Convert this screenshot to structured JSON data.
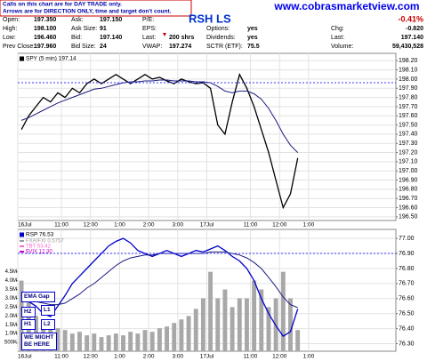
{
  "header": {
    "notice": [
      "Calls on this chart are for DAY TRADE only.",
      "Arrows are for DIRECTION ONLY, time and target don't count."
    ],
    "website": "www.cobrasmarketview.com",
    "symbol": "RSH LS",
    "quote_columns": [
      [
        {
          "label": "Open:",
          "value": "197.350"
        },
        {
          "label": "High:",
          "value": "198.100"
        },
        {
          "label": "Low:",
          "value": "196.460"
        },
        {
          "label": "Prev Close:",
          "value": "197.960"
        }
      ],
      [
        {
          "label": "Ask:",
          "value": "197.150"
        },
        {
          "label": "Ask Size:",
          "value": "91"
        },
        {
          "label": "Bid:",
          "value": "197.140"
        },
        {
          "label": "Bid Size:",
          "value": "24"
        }
      ],
      [
        {
          "label": "P/E:"
        },
        {
          "label": "EPS:"
        },
        {
          "label": "Last:",
          "value": "200 shrs"
        },
        {
          "label": "VWAP:",
          "value": "197.274"
        }
      ],
      [
        null,
        {
          "label": "Options:",
          "value": "yes"
        },
        {
          "label": "Dividends:",
          "value": "yes"
        },
        {
          "label": "SCTR (ETF):",
          "value": "75.5"
        }
      ]
    ],
    "summary": [
      {
        "value": "-0.41%"
      },
      {
        "label": "Chg:",
        "value": "-0.820"
      },
      {
        "label": "Last:",
        "value": "197.140"
      },
      {
        "label": "Volume:",
        "value": "59,430,528"
      }
    ]
  },
  "chart_data": [
    {
      "type": "line",
      "categories": [
        "16Jul",
        null,
        null,
        null,
        null,
        null,
        "11:00",
        null,
        null,
        null,
        "12:00",
        null,
        null,
        null,
        "1:00",
        null,
        null,
        null,
        "2:00",
        null,
        null,
        null,
        "3:00",
        null,
        null,
        null,
        "17Jul",
        null,
        null,
        null,
        null,
        null,
        "11:00",
        null,
        null,
        null,
        "12:00",
        null,
        null,
        null,
        "1:00",
        null,
        null,
        null,
        null,
        null,
        null,
        null,
        null,
        null,
        null,
        null
      ],
      "series": [
        {
          "name": "SPY (5 min) 197.14",
          "color": "#000000",
          "values": [
            197.45,
            197.6,
            197.7,
            197.8,
            197.75,
            197.85,
            197.8,
            197.9,
            197.85,
            197.95,
            198.0,
            197.95,
            198.0,
            198.05,
            198.0,
            197.95,
            198.0,
            198.05,
            198.0,
            198.02,
            197.98,
            197.95,
            198.0,
            197.97,
            197.95,
            197.96,
            197.9,
            197.5,
            197.4,
            197.75,
            198.05,
            197.9,
            197.7,
            197.45,
            197.2,
            196.9,
            196.6,
            196.75,
            197.14,
            null,
            null,
            null,
            null,
            null,
            null,
            null,
            null,
            null,
            null,
            null,
            null,
            null
          ]
        },
        {
          "color": "#1a1a80",
          "values": [
            197.55,
            197.58,
            197.62,
            197.66,
            197.7,
            197.74,
            197.77,
            197.8,
            197.83,
            197.86,
            197.89,
            197.9,
            197.92,
            197.94,
            197.96,
            197.97,
            197.97,
            197.98,
            197.98,
            197.99,
            197.99,
            197.98,
            197.98,
            197.98,
            197.97,
            197.97,
            197.96,
            197.92,
            197.87,
            197.85,
            197.87,
            197.87,
            197.84,
            197.78,
            197.68,
            197.55,
            197.4,
            197.28,
            197.2,
            null,
            null,
            null,
            null,
            null,
            null,
            null,
            null,
            null,
            null,
            null,
            null,
            null
          ]
        }
      ],
      "reference_line": 197.96,
      "reference_color": "#3333ff",
      "ylim": [
        196.46,
        198.28
      ],
      "yticks": [
        {
          "value": 196.5,
          "label": "196.50"
        },
        {
          "value": 196.6,
          "label": "196.60"
        },
        {
          "value": 196.7,
          "label": "196.70"
        },
        {
          "value": 196.8,
          "label": "196.80"
        },
        {
          "value": 196.9,
          "label": "196.90"
        },
        {
          "value": 197.0,
          "label": "197.00"
        },
        {
          "value": 197.1,
          "label": "197.10"
        },
        {
          "value": 197.2,
          "label": "197.20"
        },
        {
          "value": 197.3,
          "label": "197.30"
        },
        {
          "value": 197.4,
          "label": "197.40"
        },
        {
          "value": 197.5,
          "label": "197.50"
        },
        {
          "value": 197.6,
          "label": "197.60"
        },
        {
          "value": 197.7,
          "label": "197.70"
        },
        {
          "value": 197.8,
          "label": "197.80"
        },
        {
          "value": 197.9,
          "label": "197.90"
        },
        {
          "value": 198.0,
          "label": "198.00"
        },
        {
          "value": 198.1,
          "label": "198.10"
        },
        {
          "value": 198.2,
          "label": "198.20"
        }
      ],
      "grid": true
    },
    {
      "type": "line",
      "categories": [
        "16Jul",
        null,
        null,
        null,
        null,
        null,
        "11:00",
        null,
        null,
        null,
        "12:00",
        null,
        null,
        null,
        "1:00",
        null,
        null,
        null,
        "2:00",
        null,
        null,
        null,
        "3:00",
        null,
        null,
        null,
        "17Jul",
        null,
        null,
        null,
        null,
        null,
        "11:00",
        null,
        null,
        null,
        "12:00",
        null,
        null,
        null,
        "1:00",
        null,
        null,
        null,
        null,
        null,
        null,
        null,
        null,
        null,
        null,
        null
      ],
      "series": [
        {
          "type": "bar",
          "axis": "y2",
          "color": "#a8a8a8",
          "values": [
            4000000,
            3000000,
            2000000,
            1800000,
            1500000,
            1300000,
            1200000,
            1000000,
            1100000,
            900000,
            1000000,
            800000,
            900000,
            1000000,
            900000,
            1100000,
            1000000,
            1200000,
            1100000,
            1300000,
            1400000,
            1600000,
            1800000,
            2000000,
            2400000,
            3000000,
            4500000,
            3000000,
            3500000,
            2500000,
            3000000,
            3000000,
            4000000,
            3500000,
            2500000,
            3000000,
            4500000,
            3000000,
            1200000,
            null,
            null,
            null,
            null,
            null,
            null,
            null,
            null,
            null,
            null,
            null,
            null,
            null
          ]
        },
        {
          "name": "RSP 76.53",
          "color": "#0000cc",
          "values": [
            76.62,
            76.58,
            76.55,
            76.5,
            76.48,
            76.55,
            76.62,
            76.7,
            76.75,
            76.8,
            76.85,
            76.9,
            76.95,
            76.98,
            77.0,
            76.97,
            76.92,
            76.9,
            76.88,
            76.9,
            76.92,
            76.9,
            76.88,
            76.9,
            76.92,
            76.91,
            76.93,
            76.95,
            76.92,
            76.88,
            76.85,
            76.8,
            76.72,
            76.6,
            76.5,
            76.42,
            76.35,
            76.38,
            76.53,
            null,
            null,
            null,
            null,
            null,
            null,
            null,
            null,
            null,
            null,
            null,
            null,
            null
          ]
        },
        {
          "color": "#1a1a80",
          "values": [
            76.6,
            76.59,
            76.58,
            76.57,
            76.56,
            76.56,
            76.57,
            76.6,
            76.63,
            76.67,
            76.7,
            76.74,
            76.78,
            76.82,
            76.85,
            76.87,
            76.88,
            76.89,
            76.89,
            76.9,
            76.9,
            76.9,
            76.9,
            76.9,
            76.9,
            76.9,
            76.91,
            76.91,
            76.91,
            76.9,
            76.89,
            76.87,
            76.84,
            76.8,
            76.74,
            76.68,
            76.61,
            76.56,
            76.54,
            null,
            null,
            null,
            null,
            null,
            null,
            null,
            null,
            null,
            null,
            null,
            null,
            null
          ]
        }
      ],
      "overlays": [
        {
          "name": "FXA/FXI 0.5757",
          "color": "#999999"
        },
        {
          "name": "TBT 53.42",
          "color": "#ff66cc"
        },
        {
          "name": "$VIX 12.30",
          "color": "#cc00cc"
        }
      ],
      "annotations": [
        "EMA Gap",
        "H2",
        "L1",
        "H1",
        "L2",
        "WE MIGHT BE HERE"
      ],
      "reference_line": 76.9,
      "reference_color": "#3333ff",
      "ylim": [
        76.25,
        77.06
      ],
      "yticks": [
        {
          "value": 76.3,
          "label": "76.30"
        },
        {
          "value": 76.4,
          "label": "76.40"
        },
        {
          "value": 76.5,
          "label": "76.50"
        },
        {
          "value": 76.6,
          "label": "76.60"
        },
        {
          "value": 76.7,
          "label": "76.70"
        },
        {
          "value": 76.8,
          "label": "76.80"
        },
        {
          "value": 76.9,
          "label": "76.90"
        },
        {
          "value": 77.0,
          "label": "77.00"
        }
      ],
      "y2lim": [
        0,
        6900000
      ],
      "y2ticks": [
        {
          "value": 500000,
          "label": "500K"
        },
        {
          "value": 1000000,
          "label": "1.0M"
        },
        {
          "value": 1500000,
          "label": "1.5M"
        },
        {
          "value": 2000000,
          "label": "2.0M"
        },
        {
          "value": 2500000,
          "label": "2.5M"
        },
        {
          "value": 3000000,
          "label": "3.0M"
        },
        {
          "value": 3500000,
          "label": "3.5M"
        },
        {
          "value": 4000000,
          "label": "4.0M"
        },
        {
          "value": 4500000,
          "label": "4.5M"
        }
      ],
      "grid": true
    }
  ]
}
